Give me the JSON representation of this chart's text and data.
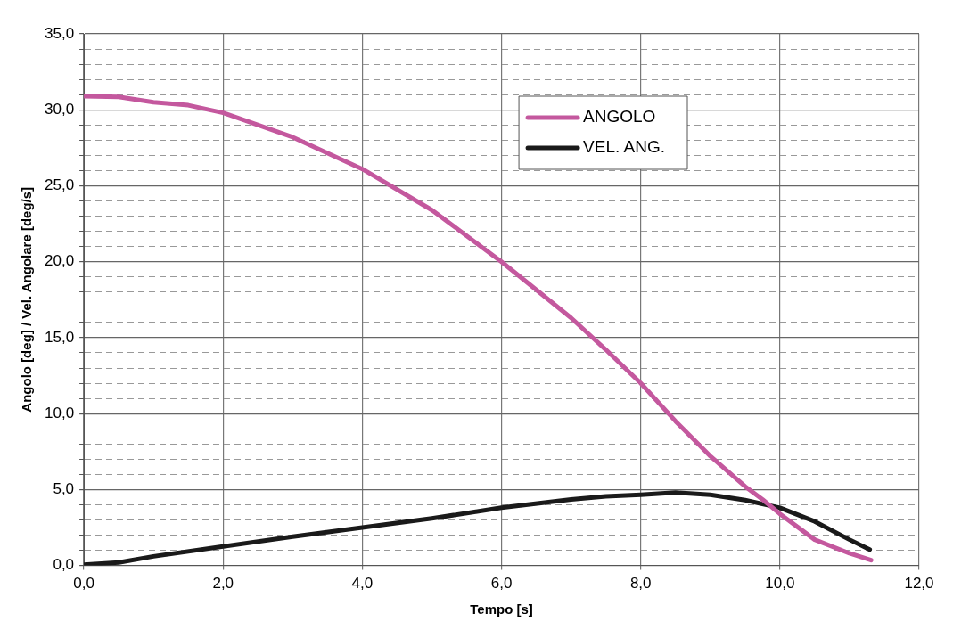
{
  "chart_data": {
    "type": "line",
    "xlabel": "Tempo [s]",
    "ylabel": "Angolo [deg] / Vel. Angolare [deg/s]",
    "xlim": [
      0,
      12
    ],
    "xticks": [
      {
        "value": 0,
        "label": "0,0"
      },
      {
        "value": 2,
        "label": "2,0"
      },
      {
        "value": 4,
        "label": "4,0"
      },
      {
        "value": 6,
        "label": "6,0"
      },
      {
        "value": 8,
        "label": "8,0"
      },
      {
        "value": 10,
        "label": "10,0"
      },
      {
        "value": 12,
        "label": "12,0"
      }
    ],
    "ylim": [
      0,
      35
    ],
    "yticks": [
      {
        "value": 0,
        "label": "0,0"
      },
      {
        "value": 1,
        "label": null
      },
      {
        "value": 2,
        "label": null
      },
      {
        "value": 3,
        "label": null
      },
      {
        "value": 4,
        "label": null
      },
      {
        "value": 5,
        "label": "5,0"
      },
      {
        "value": 6,
        "label": null
      },
      {
        "value": 7,
        "label": null
      },
      {
        "value": 8,
        "label": null
      },
      {
        "value": 9,
        "label": null
      },
      {
        "value": 10,
        "label": "10,0"
      },
      {
        "value": 11,
        "label": null
      },
      {
        "value": 12,
        "label": null
      },
      {
        "value": 13,
        "label": null
      },
      {
        "value": 14,
        "label": null
      },
      {
        "value": 15,
        "label": "15,0"
      },
      {
        "value": 16,
        "label": null
      },
      {
        "value": 17,
        "label": null
      },
      {
        "value": 18,
        "label": null
      },
      {
        "value": 19,
        "label": null
      },
      {
        "value": 20,
        "label": "20,0"
      },
      {
        "value": 21,
        "label": null
      },
      {
        "value": 22,
        "label": null
      },
      {
        "value": 23,
        "label": null
      },
      {
        "value": 24,
        "label": null
      },
      {
        "value": 25,
        "label": "25,0"
      },
      {
        "value": 26,
        "label": null
      },
      {
        "value": 27,
        "label": null
      },
      {
        "value": 28,
        "label": null
      },
      {
        "value": 29,
        "label": null
      },
      {
        "value": 30,
        "label": "30,0"
      },
      {
        "value": 31,
        "label": null
      },
      {
        "value": 32,
        "label": null
      },
      {
        "value": 33,
        "label": null
      },
      {
        "value": 34,
        "label": null
      },
      {
        "value": 35,
        "label": "35,0"
      }
    ],
    "grid": true,
    "legend": "top right",
    "marker": "none",
    "line_style": "solid",
    "series": [
      {
        "name": "ANGOLO",
        "color": "#c4589e",
        "x": [
          0,
          0.5,
          1,
          1.5,
          2,
          3,
          4,
          5,
          6,
          7,
          7.5,
          8,
          8.5,
          9,
          9.5,
          9.75,
          10,
          10.5,
          11,
          11.31
        ],
        "values": [
          30.9,
          30.85,
          30.5,
          30.3,
          29.8,
          28.2,
          26.1,
          23.4,
          20.0,
          16.3,
          14.2,
          12.0,
          9.5,
          7.2,
          5.2,
          4.35,
          3.4,
          1.7,
          0.8,
          0.35
        ]
      },
      {
        "name": "VEL. ANG.",
        "color": "#1a1a1a",
        "x": [
          0,
          0.5,
          1,
          2,
          3,
          4,
          5,
          6,
          7,
          7.5,
          8,
          8.5,
          9,
          9.5,
          10,
          10.5,
          11,
          11.29
        ],
        "values": [
          0.05,
          0.2,
          0.6,
          1.25,
          1.9,
          2.5,
          3.1,
          3.8,
          4.35,
          4.55,
          4.65,
          4.8,
          4.65,
          4.3,
          3.8,
          2.9,
          1.7,
          1.05
        ]
      }
    ]
  }
}
